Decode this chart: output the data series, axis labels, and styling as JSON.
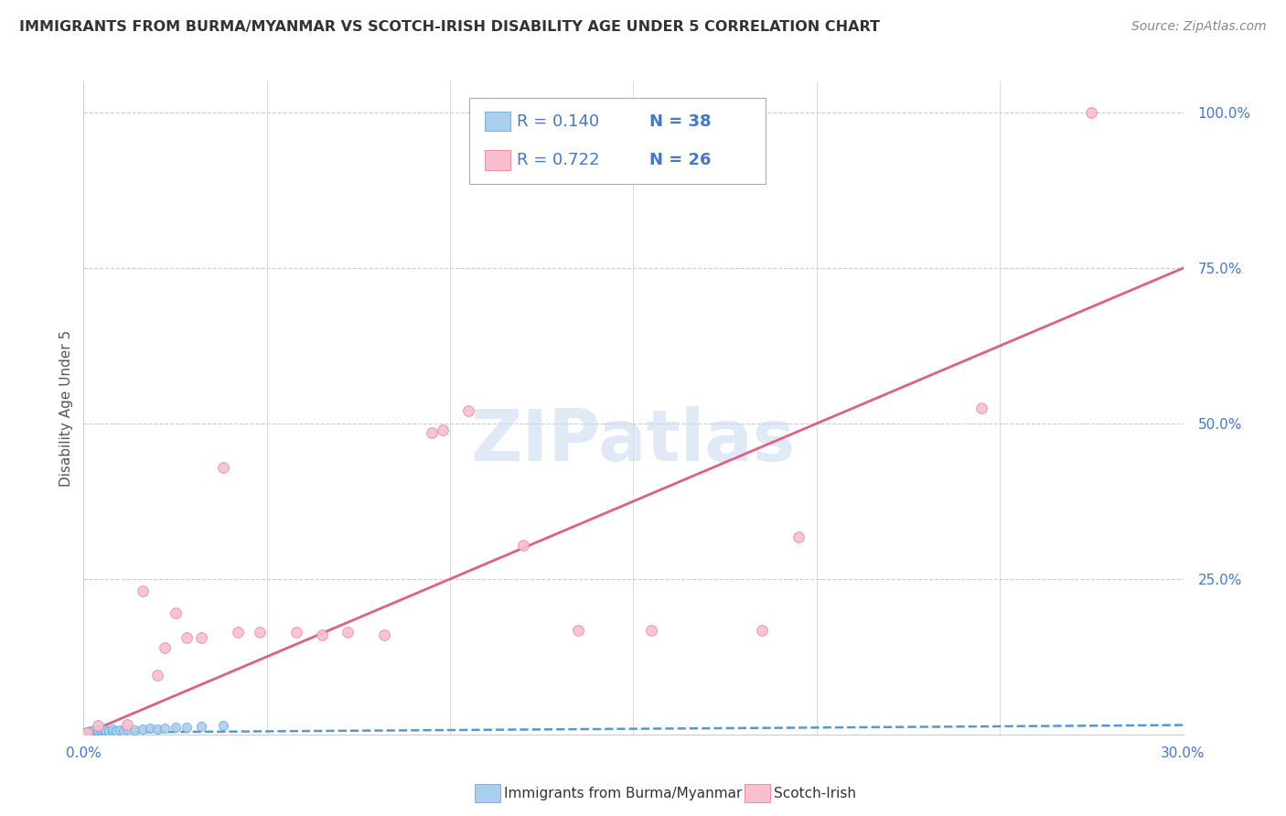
{
  "title": "IMMIGRANTS FROM BURMA/MYANMAR VS SCOTCH-IRISH DISABILITY AGE UNDER 5 CORRELATION CHART",
  "source": "Source: ZipAtlas.com",
  "ylabel": "Disability Age Under 5",
  "xlabel_blue": "Immigrants from Burma/Myanmar",
  "xlabel_pink": "Scotch-Irish",
  "xlim": [
    0.0,
    0.3
  ],
  "ylim": [
    0.0,
    1.05
  ],
  "yticks": [
    0.0,
    0.25,
    0.5,
    0.75,
    1.0
  ],
  "ytick_labels": [
    "",
    "25.0%",
    "50.0%",
    "75.0%",
    "100.0%"
  ],
  "xtick_left_label": "0.0%",
  "xtick_right_label": "30.0%",
  "r_blue": 0.14,
  "n_blue": 38,
  "r_pink": 0.722,
  "n_pink": 26,
  "blue_scatter_color": "#aacfee",
  "blue_edge_color": "#6aaad4",
  "blue_line_color": "#5599cc",
  "pink_scatter_color": "#f9bfcc",
  "pink_edge_color": "#e88098",
  "pink_line_color": "#e06080",
  "legend_text_color": "#4477cc",
  "grid_color": "#cccccc",
  "tick_label_color": "#4477cc",
  "title_color": "#333333",
  "source_color": "#888888",
  "ylabel_color": "#555555",
  "watermark_color": "#c8d8f0",
  "blue_scatter_x": [
    0.001,
    0.001,
    0.001,
    0.002,
    0.002,
    0.002,
    0.002,
    0.003,
    0.003,
    0.003,
    0.003,
    0.004,
    0.004,
    0.004,
    0.005,
    0.005,
    0.005,
    0.005,
    0.006,
    0.006,
    0.006,
    0.007,
    0.007,
    0.008,
    0.008,
    0.009,
    0.01,
    0.011,
    0.012,
    0.014,
    0.016,
    0.018,
    0.02,
    0.022,
    0.025,
    0.028,
    0.032,
    0.038
  ],
  "blue_scatter_y": [
    0.002,
    0.003,
    0.004,
    0.002,
    0.003,
    0.005,
    0.006,
    0.002,
    0.004,
    0.005,
    0.007,
    0.003,
    0.005,
    0.007,
    0.003,
    0.004,
    0.006,
    0.008,
    0.003,
    0.005,
    0.007,
    0.004,
    0.006,
    0.005,
    0.008,
    0.006,
    0.007,
    0.005,
    0.008,
    0.007,
    0.008,
    0.01,
    0.009,
    0.01,
    0.012,
    0.011,
    0.013,
    0.015
  ],
  "pink_scatter_x": [
    0.001,
    0.004,
    0.012,
    0.016,
    0.02,
    0.022,
    0.025,
    0.028,
    0.032,
    0.038,
    0.042,
    0.048,
    0.058,
    0.065,
    0.072,
    0.082,
    0.095,
    0.098,
    0.105,
    0.12,
    0.135,
    0.155,
    0.185,
    0.195,
    0.245,
    0.275
  ],
  "pink_scatter_y": [
    0.003,
    0.015,
    0.016,
    0.23,
    0.095,
    0.14,
    0.195,
    0.155,
    0.155,
    0.43,
    0.165,
    0.165,
    0.165,
    0.16,
    0.165,
    0.16,
    0.485,
    0.49,
    0.52,
    0.305,
    0.168,
    0.168,
    0.168,
    0.318,
    0.525,
    1.0
  ],
  "pink_trendline_x0": 0.0,
  "pink_trendline_y0": 0.0,
  "pink_trendline_x1": 0.3,
  "pink_trendline_y1": 0.75,
  "blue_trendline_x0": 0.0,
  "blue_trendline_y0": 0.003,
  "blue_trendline_x1": 0.3,
  "blue_trendline_y1": 0.015
}
